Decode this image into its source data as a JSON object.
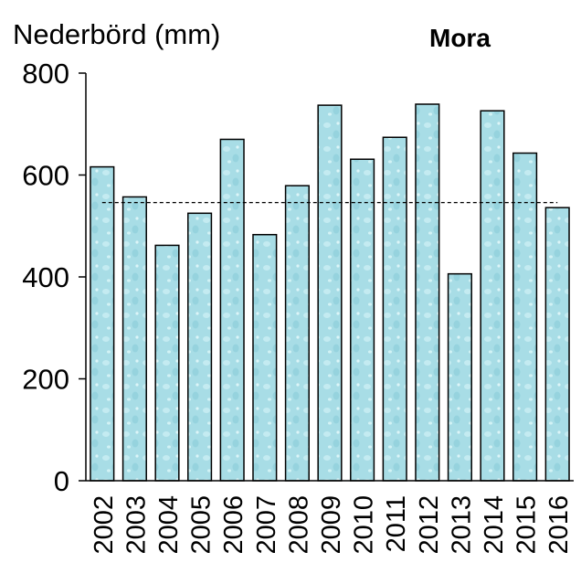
{
  "chart_data": {
    "type": "bar",
    "title": "Mora",
    "xlabel": "",
    "ylabel": "Nederbörd  (mm)",
    "categories": [
      "2002",
      "2003",
      "2004",
      "2005",
      "2006",
      "2007",
      "2008",
      "2009",
      "2010",
      "2011",
      "2012",
      "2013",
      "2014",
      "2015",
      "2016"
    ],
    "values": [
      616,
      557,
      462,
      525,
      670,
      483,
      579,
      737,
      631,
      674,
      739,
      406,
      726,
      643,
      536
    ],
    "ylim": [
      0,
      800
    ],
    "yticks": [
      "0",
      "200",
      "400",
      "600",
      "800"
    ],
    "reference_line": {
      "value": 546,
      "style": "dashed"
    },
    "bar_color": "#a8dde6",
    "grid": false,
    "legend": "none"
  }
}
